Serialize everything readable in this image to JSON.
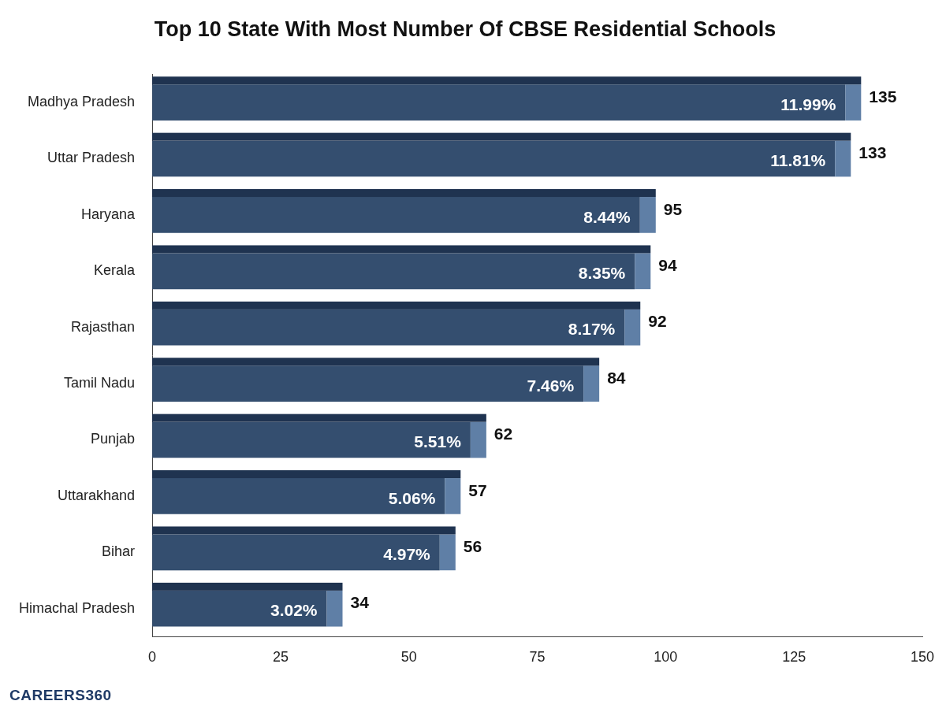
{
  "chart_data": {
    "type": "bar",
    "orientation": "horizontal",
    "title": "Top 10 State With Most Number Of CBSE Residential Schools",
    "categories": [
      "Madhya Pradesh",
      "Uttar Pradesh",
      "Haryana",
      "Kerala",
      "Rajasthan",
      "Tamil Nadu",
      "Punjab",
      "Uttarakhand",
      "Bihar",
      "Himachal Pradesh"
    ],
    "values": [
      135,
      133,
      95,
      94,
      92,
      84,
      62,
      57,
      56,
      34
    ],
    "share_labels": [
      "11.99%",
      "11.81%",
      "8.44%",
      "8.35%",
      "8.17%",
      "7.46%",
      "5.51%",
      "5.06%",
      "4.97%",
      "3.02%"
    ],
    "color": "#344e6f",
    "xlim": [
      0,
      150
    ],
    "xticks": [
      0,
      25,
      50,
      75,
      100,
      125,
      150
    ],
    "grid": false,
    "data_labels": true,
    "annotations": [
      "CAREERS360"
    ]
  }
}
